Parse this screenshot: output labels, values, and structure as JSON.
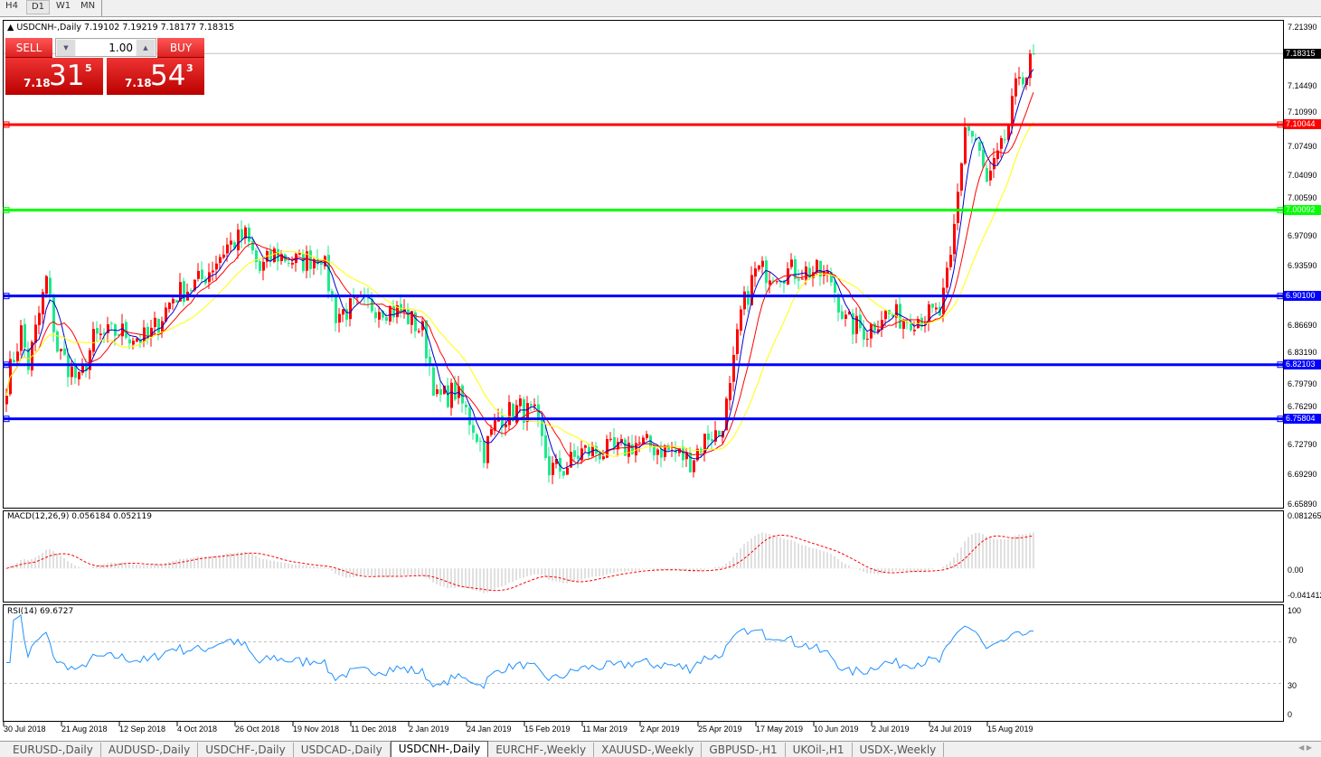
{
  "timeframes": [
    "H4",
    "D1",
    "W1",
    "MN"
  ],
  "active_timeframe": "D1",
  "chart": {
    "symbol_line": "USDCNH-,Daily  7.19102 7.19219 7.18177 7.18315",
    "trade_panel": {
      "sell_label": "SELL",
      "buy_label": "BUY",
      "lot": "1.00",
      "sell": {
        "prefix": "7.18",
        "big": "31",
        "sup": "5"
      },
      "buy": {
        "prefix": "7.18",
        "big": "54",
        "sup": "3"
      }
    },
    "price_axis": [
      "7.21390",
      "7.14490",
      "7.10990",
      "7.07490",
      "7.04090",
      "7.00590",
      "6.97090",
      "6.93590",
      "6.86690",
      "6.83190",
      "6.79790",
      "6.76290",
      "6.72790",
      "6.69290",
      "6.65890"
    ],
    "current_price": "7.18315",
    "levels": [
      {
        "price": "7.10044",
        "color": "#ff0000"
      },
      {
        "price": "7.00092",
        "color": "#00ff00"
      },
      {
        "price": "6.90100",
        "color": "#0000ff"
      },
      {
        "price": "6.82103",
        "color": "#0000ff"
      },
      {
        "price": "6.75804",
        "color": "#0000ff"
      }
    ],
    "candle_colors": {
      "up": "#ff0000",
      "down": "#1de98b"
    },
    "ma_colors": [
      "#0000cc",
      "#ff0000",
      "#ffff00"
    ],
    "price_path": [
      [
        0,
        6.8
      ],
      [
        4,
        6.86
      ],
      [
        6,
        6.82
      ],
      [
        11,
        6.92
      ],
      [
        14,
        6.84
      ],
      [
        20,
        6.8
      ],
      [
        24,
        6.85
      ],
      [
        31,
        6.86
      ],
      [
        39,
        6.85
      ],
      [
        46,
        6.9
      ],
      [
        54,
        6.92
      ],
      [
        61,
        6.96
      ],
      [
        66,
        6.97
      ],
      [
        70,
        6.93
      ],
      [
        74,
        6.95
      ],
      [
        81,
        6.94
      ],
      [
        87,
        6.95
      ],
      [
        91,
        6.88
      ],
      [
        98,
        6.89
      ],
      [
        103,
        6.89
      ],
      [
        110,
        6.88
      ],
      [
        115,
        6.86
      ],
      [
        119,
        6.78
      ],
      [
        124,
        6.79
      ],
      [
        129,
        6.75
      ],
      [
        132,
        6.72
      ],
      [
        136,
        6.76
      ],
      [
        142,
        6.77
      ],
      [
        146,
        6.76
      ],
      [
        150,
        6.7
      ],
      [
        154,
        6.7
      ],
      [
        159,
        6.72
      ],
      [
        169,
        6.72
      ],
      [
        174,
        6.73
      ],
      [
        184,
        6.72
      ],
      [
        189,
        6.71
      ],
      [
        194,
        6.74
      ],
      [
        197,
        6.74
      ],
      [
        200,
        6.79
      ],
      [
        203,
        6.88
      ],
      [
        207,
        6.93
      ],
      [
        213,
        6.93
      ],
      [
        223,
        6.93
      ],
      [
        228,
        6.92
      ],
      [
        232,
        6.87
      ],
      [
        238,
        6.86
      ],
      [
        242,
        6.88
      ],
      [
        248,
        6.875
      ],
      [
        258,
        6.88
      ],
      [
        261,
        6.94
      ],
      [
        263,
        7.02
      ],
      [
        265,
        7.1
      ],
      [
        268,
        7.08
      ],
      [
        271,
        7.03
      ],
      [
        275,
        7.07
      ],
      [
        277,
        7.1
      ],
      [
        280,
        7.16
      ],
      [
        282,
        7.16
      ],
      [
        284,
        7.183
      ]
    ]
  },
  "macd": {
    "label": "MACD(12,26,9) 0.056184 0.052119",
    "axis": [
      "0.081265",
      "0.00",
      "-0.041412"
    ]
  },
  "rsi": {
    "label": "RSI(14) 69.6727",
    "axis": [
      "100",
      "70",
      "30",
      "0"
    ]
  },
  "dates": [
    "30 Jul 2018",
    "21 Aug 2018",
    "12 Sep 2018",
    "4 Oct 2018",
    "26 Oct 2018",
    "19 Nov 2018",
    "11 Dec 2018",
    "2 Jan 2019",
    "24 Jan 2019",
    "15 Feb 2019",
    "11 Mar 2019",
    "2 Apr 2019",
    "25 Apr 2019",
    "17 May 2019",
    "10 Jun 2019",
    "2 Jul 2019",
    "24 Jul 2019",
    "15 Aug 2019"
  ],
  "tabs": [
    "EURUSD-,Daily",
    "AUDUSD-,Daily",
    "USDCHF-,Daily",
    "USDCAD-,Daily",
    "USDCNH-,Daily",
    "EURCHF-,Weekly",
    "XAUUSD-,Weekly",
    "GBPUSD-,H1",
    "UKOil-,H1",
    "USDX-,Weekly"
  ],
  "active_tab": "USDCNH-,Daily"
}
